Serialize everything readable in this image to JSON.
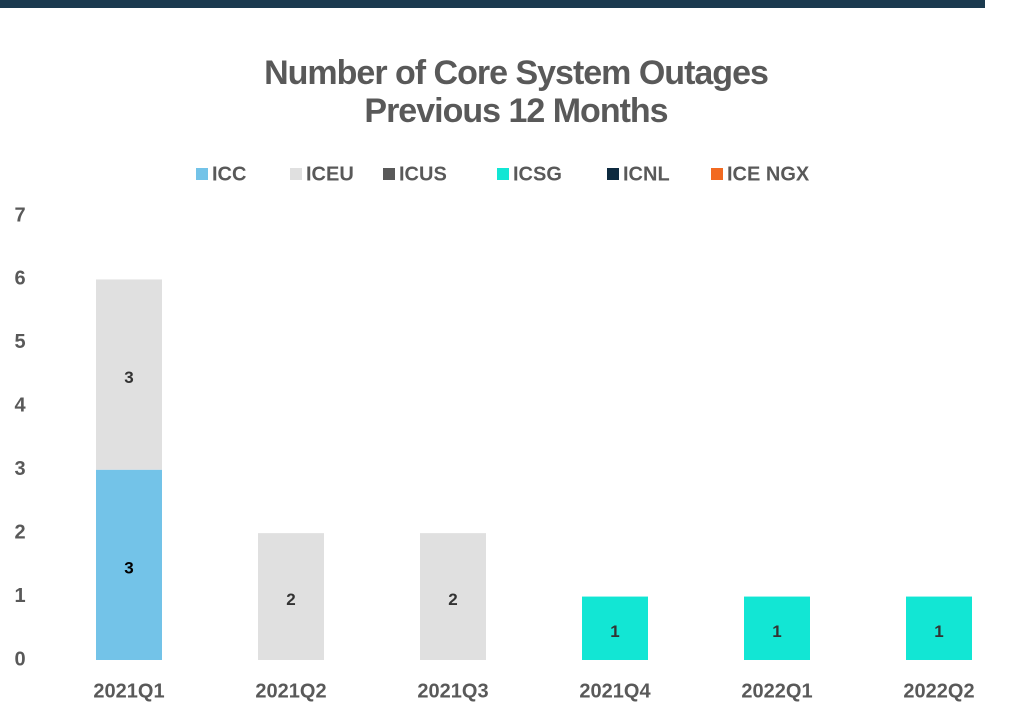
{
  "chart_data": {
    "type": "stacked_bar",
    "title": [
      "Number of Core System Outages",
      "Previous 12 Months"
    ],
    "categories": [
      "2021Q1",
      "2021Q2",
      "2021Q3",
      "2021Q4",
      "2022Q1",
      "2022Q2"
    ],
    "series": [
      {
        "name": "ICC",
        "color": "#73c3e8",
        "values": [
          3,
          null,
          null,
          null,
          null,
          null
        ]
      },
      {
        "name": "ICEU",
        "color": "#e0e0e0",
        "values": [
          3,
          2,
          2,
          null,
          null,
          null
        ]
      },
      {
        "name": "ICUS",
        "color": "#595959",
        "values": [
          null,
          null,
          null,
          null,
          null,
          null
        ]
      },
      {
        "name": "ICSG",
        "color": "#12e6d4",
        "values": [
          null,
          null,
          null,
          1,
          1,
          1
        ]
      },
      {
        "name": "ICNL",
        "color": "#0d2a3f",
        "values": [
          null,
          null,
          null,
          null,
          null,
          null
        ]
      },
      {
        "name": "ICE NGX",
        "color": "#f26a21",
        "values": [
          null,
          null,
          null,
          null,
          null,
          null
        ]
      }
    ],
    "ylim": [
      0,
      7
    ],
    "yticks": [
      0,
      1,
      2,
      3,
      4,
      5,
      6,
      7
    ],
    "legend": "top",
    "grid": false
  }
}
